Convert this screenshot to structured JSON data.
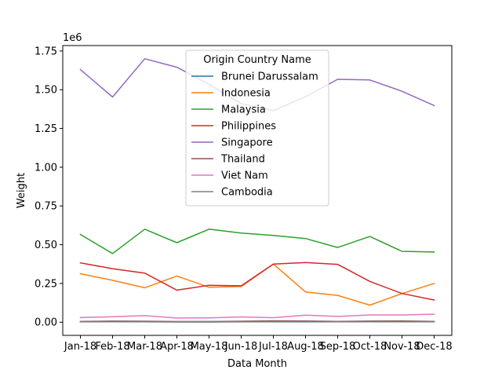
{
  "chart_data": {
    "type": "line",
    "categories": [
      "Jan-18",
      "Feb-18",
      "Mar-18",
      "Apr-18",
      "May-18",
      "Jun-18",
      "Jul-18",
      "Aug-18",
      "Sep-18",
      "Oct-18",
      "Nov-18",
      "Dec-18"
    ],
    "xlabel": "Data Month",
    "ylabel": "Weight",
    "y_offset_label": "1e6",
    "ylim": [
      -85000,
      1785000
    ],
    "y_ticks": [
      0,
      250000,
      500000,
      750000,
      1000000,
      1250000,
      1500000,
      1750000
    ],
    "y_tick_labels": [
      "0.00",
      "0.25",
      "0.50",
      "0.75",
      "1.00",
      "1.25",
      "1.50",
      "1.75"
    ],
    "grid": false,
    "legend": {
      "title": "Origin Country Name",
      "placement": "upper-center"
    },
    "series": [
      {
        "name": "Brunei Darussalam",
        "color": "#1f77b4",
        "values": [
          2000,
          3000,
          2000,
          1000,
          1000,
          2000,
          2000,
          2000,
          2000,
          3000,
          2000,
          2000
        ]
      },
      {
        "name": "Indonesia",
        "color": "#ff7f0e",
        "values": [
          313000,
          270000,
          222000,
          298000,
          225000,
          230000,
          375000,
          195000,
          173000,
          110000,
          185000,
          250000
        ]
      },
      {
        "name": "Malaysia",
        "color": "#2ca02c",
        "values": [
          566000,
          443000,
          600000,
          513000,
          600000,
          575000,
          560000,
          540000,
          482000,
          553000,
          457000,
          453000
        ]
      },
      {
        "name": "Philippines",
        "color": "#d62728",
        "values": [
          383000,
          345000,
          317000,
          207000,
          238000,
          235000,
          375000,
          385000,
          373000,
          263000,
          185000,
          143000
        ]
      },
      {
        "name": "Singapore",
        "color": "#9467bd",
        "values": [
          1630000,
          1453000,
          1700000,
          1645000,
          1535000,
          1410000,
          1365000,
          1455000,
          1567000,
          1563000,
          1490000,
          1398000
        ]
      },
      {
        "name": "Thailand",
        "color": "#8c564b",
        "values": [
          5000,
          7000,
          6000,
          4000,
          4000,
          6000,
          9000,
          8000,
          5000,
          7000,
          8000,
          5000
        ]
      },
      {
        "name": "Viet Nam",
        "color": "#e377c2",
        "values": [
          30000,
          35000,
          42000,
          27000,
          28000,
          34000,
          29000,
          45000,
          37000,
          47000,
          47000,
          52000
        ]
      },
      {
        "name": "Cambodia",
        "color": "#7f7f7f",
        "values": [
          3000,
          4000,
          3000,
          2000,
          3000,
          3000,
          3000,
          4000,
          3000,
          4000,
          3000,
          3000
        ]
      }
    ]
  }
}
